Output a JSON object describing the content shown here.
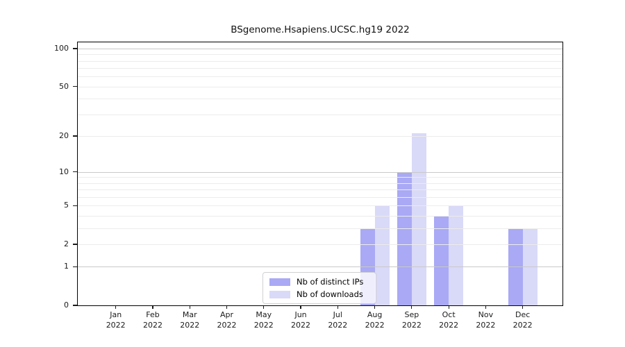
{
  "chart_data": {
    "type": "bar",
    "title": "BSgenome.Hsapiens.UCSC.hg19 2022",
    "categories": [
      "Jan",
      "Feb",
      "Mar",
      "Apr",
      "May",
      "Jun",
      "Jul",
      "Aug",
      "Sep",
      "Oct",
      "Nov",
      "Dec"
    ],
    "x_year": "2022",
    "series": [
      {
        "name": "Nb of distinct IPs",
        "color": "#a9a9f5",
        "values": [
          0,
          0,
          0,
          0,
          0,
          0,
          0,
          3,
          10,
          4,
          0,
          3
        ]
      },
      {
        "name": "Nb of downloads",
        "color": "#d9d9f8",
        "values": [
          0,
          0,
          0,
          0,
          0,
          0,
          0,
          5,
          21,
          5,
          0,
          3
        ]
      }
    ],
    "y_axis": {
      "scale": "log1p",
      "max": 100,
      "ticks": [
        0,
        1,
        2,
        5,
        10,
        20,
        50,
        100
      ],
      "minor_gridlines": [
        2,
        3,
        4,
        5,
        6,
        7,
        8,
        9,
        20,
        30,
        40,
        50,
        60,
        70,
        80,
        90
      ],
      "major_gridlines": [
        1,
        10,
        100
      ]
    },
    "legend": {
      "position": "bottom-center",
      "entries": [
        "Nb of distinct IPs",
        "Nb of downloads"
      ]
    },
    "colors": {
      "bar_distinct_ips": "#a9a9f5",
      "bar_downloads": "#d9d9f8",
      "grid_minor": "#ececec",
      "grid_major": "#c9c9c9",
      "frame": "#000000",
      "text": "#1a1a1a"
    }
  }
}
